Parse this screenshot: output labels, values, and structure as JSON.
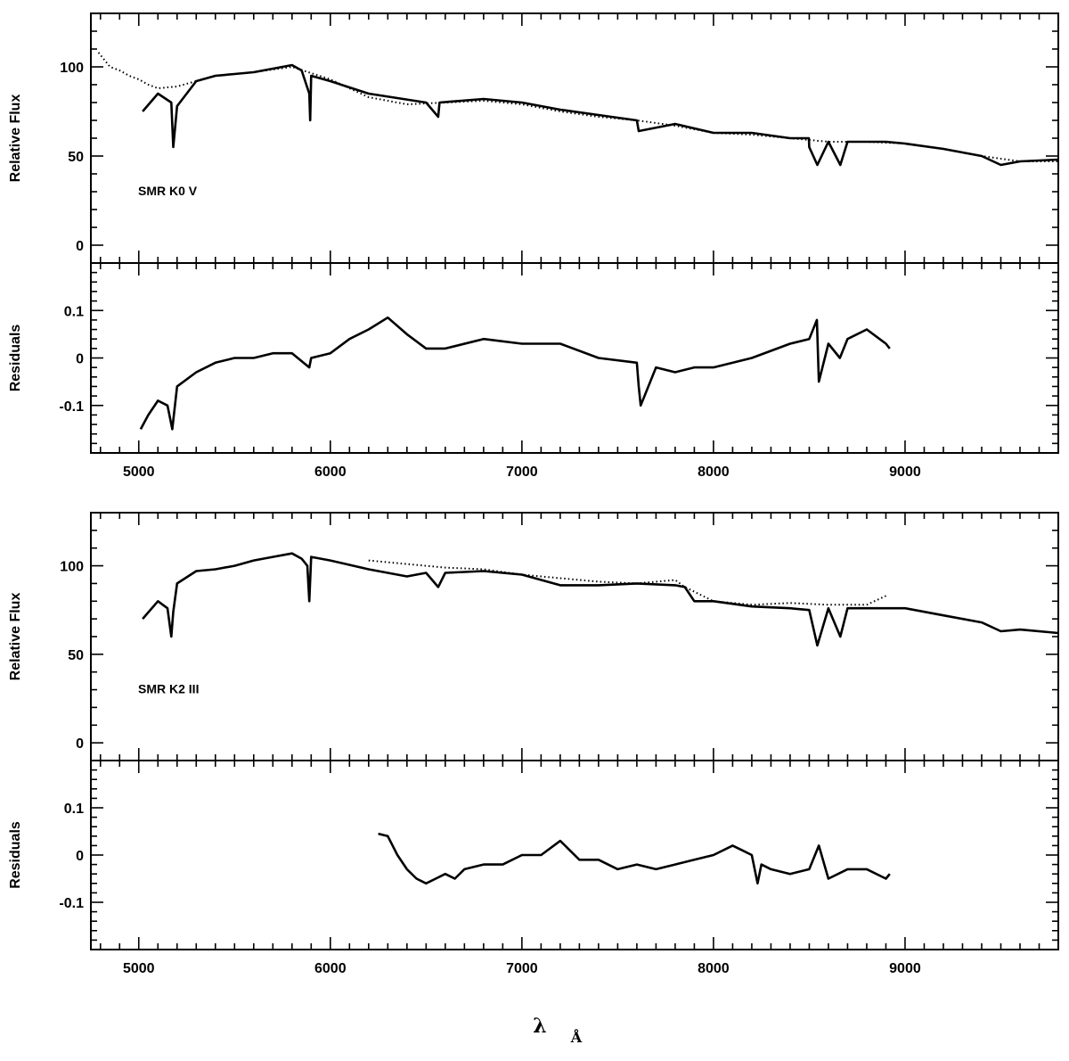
{
  "chart_data": [
    {
      "type": "line",
      "panel": "top-flux",
      "ylabel": "Relative Flux",
      "annotation": "SMR K0 V",
      "xlim": [
        4750,
        9800
      ],
      "ylim": [
        -10,
        130
      ],
      "yticks": [
        "0",
        "50",
        "100"
      ],
      "xticks": [],
      "series": [
        {
          "style": "solid",
          "x": [
            5020,
            5100,
            5170,
            5180,
            5200,
            5300,
            5400,
            5500,
            5600,
            5700,
            5800,
            5850,
            5890,
            5895,
            5900,
            6000,
            6200,
            6500,
            6563,
            6570,
            6800,
            7000,
            7200,
            7400,
            7600,
            7610,
            7800,
            8000,
            8200,
            8400,
            8498,
            8500,
            8542,
            8600,
            8662,
            8700,
            8900,
            9000,
            9200,
            9400,
            9500,
            9600,
            9800
          ],
          "y": [
            75,
            85,
            80,
            55,
            78,
            92,
            95,
            96,
            97,
            99,
            101,
            98,
            85,
            70,
            95,
            92,
            85,
            80,
            72,
            80,
            82,
            80,
            76,
            73,
            70,
            64,
            68,
            63,
            63,
            60,
            60,
            55,
            45,
            58,
            45,
            58,
            58,
            57,
            54,
            50,
            45,
            47,
            48
          ]
        },
        {
          "style": "dotted",
          "x": [
            4790,
            4850,
            4900,
            4950,
            5000,
            5050,
            5100,
            5200,
            5400,
            5600,
            5800,
            6000,
            6200,
            6400,
            6600,
            6800,
            7000,
            7200,
            7400,
            7600,
            7800,
            8000,
            8200,
            8400,
            8600,
            8800,
            9000,
            9200,
            9400,
            9600,
            9800
          ],
          "y": [
            108,
            100,
            98,
            95,
            93,
            90,
            88,
            89,
            95,
            97,
            100,
            93,
            83,
            79,
            80,
            81,
            79,
            75,
            72,
            70,
            67,
            63,
            62,
            60,
            58,
            58,
            57,
            54,
            50,
            47,
            47
          ]
        }
      ]
    },
    {
      "type": "line",
      "panel": "top-residuals",
      "ylabel": "Residuals",
      "xlim": [
        4750,
        9800
      ],
      "ylim": [
        -0.2,
        0.2
      ],
      "yticks": [
        "-0.1",
        "0",
        "0.1"
      ],
      "xticks": [
        "5000",
        "6000",
        "7000",
        "8000",
        "9000"
      ],
      "series": [
        {
          "style": "solid",
          "x": [
            5010,
            5050,
            5100,
            5150,
            5175,
            5200,
            5300,
            5400,
            5500,
            5600,
            5700,
            5800,
            5890,
            5900,
            6000,
            6100,
            6200,
            6300,
            6400,
            6500,
            6600,
            6800,
            7000,
            7200,
            7400,
            7600,
            7610,
            7620,
            7700,
            7800,
            7900,
            8000,
            8200,
            8400,
            8500,
            8540,
            8550,
            8600,
            8660,
            8700,
            8800,
            8900,
            8920
          ],
          "y": [
            -0.15,
            -0.12,
            -0.09,
            -0.1,
            -0.15,
            -0.06,
            -0.03,
            -0.01,
            0.0,
            0.0,
            0.01,
            0.01,
            -0.02,
            0.0,
            0.01,
            0.04,
            0.06,
            0.085,
            0.05,
            0.02,
            0.02,
            0.04,
            0.03,
            0.03,
            0.0,
            -0.01,
            -0.06,
            -0.1,
            -0.02,
            -0.03,
            -0.02,
            -0.02,
            0.0,
            0.03,
            0.04,
            0.08,
            -0.05,
            0.03,
            0.0,
            0.04,
            0.06,
            0.03,
            0.02
          ]
        }
      ]
    },
    {
      "type": "line",
      "panel": "bottom-flux",
      "ylabel": "Relative Flux",
      "annotation": "SMR K2 III",
      "xlim": [
        4750,
        9800
      ],
      "ylim": [
        -10,
        130
      ],
      "yticks": [
        "0",
        "50",
        "100"
      ],
      "xticks": [],
      "series": [
        {
          "style": "solid",
          "x": [
            5020,
            5100,
            5150,
            5170,
            5180,
            5200,
            5300,
            5400,
            5500,
            5600,
            5700,
            5800,
            5850,
            5880,
            5890,
            5900,
            6000,
            6200,
            6400,
            6500,
            6563,
            6600,
            6800,
            7000,
            7200,
            7400,
            7600,
            7800,
            7850,
            7900,
            8000,
            8200,
            8400,
            8500,
            8542,
            8600,
            8662,
            8700,
            8900,
            9000,
            9200,
            9400,
            9500,
            9600,
            9800
          ],
          "y": [
            70,
            80,
            76,
            60,
            74,
            90,
            97,
            98,
            100,
            103,
            105,
            107,
            104,
            100,
            80,
            105,
            103,
            98,
            94,
            96,
            88,
            96,
            97,
            95,
            89,
            89,
            90,
            89,
            88,
            80,
            80,
            77,
            76,
            75,
            55,
            76,
            60,
            76,
            76,
            76,
            72,
            68,
            63,
            64,
            62
          ]
        },
        {
          "style": "dotted",
          "x": [
            6200,
            6300,
            6400,
            6500,
            6600,
            6800,
            7000,
            7200,
            7400,
            7600,
            7800,
            7850,
            8000,
            8200,
            8400,
            8600,
            8800,
            8900
          ],
          "y": [
            103,
            102,
            101,
            100,
            99,
            98,
            95,
            93,
            91,
            90,
            92,
            88,
            80,
            78,
            79,
            78,
            78,
            83
          ]
        }
      ]
    },
    {
      "type": "line",
      "panel": "bottom-residuals",
      "ylabel": "Residuals",
      "xlim": [
        4750,
        9800
      ],
      "ylim": [
        -0.2,
        0.2
      ],
      "yticks": [
        "-0.1",
        "0",
        "0.1"
      ],
      "xticks": [
        "5000",
        "6000",
        "7000",
        "8000",
        "9000"
      ],
      "series": [
        {
          "style": "solid",
          "x": [
            6250,
            6300,
            6350,
            6400,
            6450,
            6500,
            6550,
            6600,
            6650,
            6700,
            6800,
            6900,
            7000,
            7100,
            7200,
            7300,
            7400,
            7500,
            7600,
            7700,
            7800,
            7900,
            8000,
            8100,
            8150,
            8200,
            8230,
            8250,
            8300,
            8400,
            8500,
            8550,
            8600,
            8700,
            8800,
            8900,
            8920
          ],
          "y": [
            0.045,
            0.04,
            0.0,
            -0.03,
            -0.05,
            -0.06,
            -0.05,
            -0.04,
            -0.05,
            -0.03,
            -0.02,
            -0.02,
            0.0,
            0.0,
            0.03,
            -0.01,
            -0.01,
            -0.03,
            -0.02,
            -0.03,
            -0.02,
            -0.01,
            0.0,
            0.02,
            0.01,
            0.0,
            -0.06,
            -0.02,
            -0.03,
            -0.04,
            -0.03,
            0.02,
            -0.05,
            -0.03,
            -0.03,
            -0.05,
            -0.04
          ]
        }
      ]
    }
  ],
  "xlabel": "λ",
  "xunit": "Å"
}
